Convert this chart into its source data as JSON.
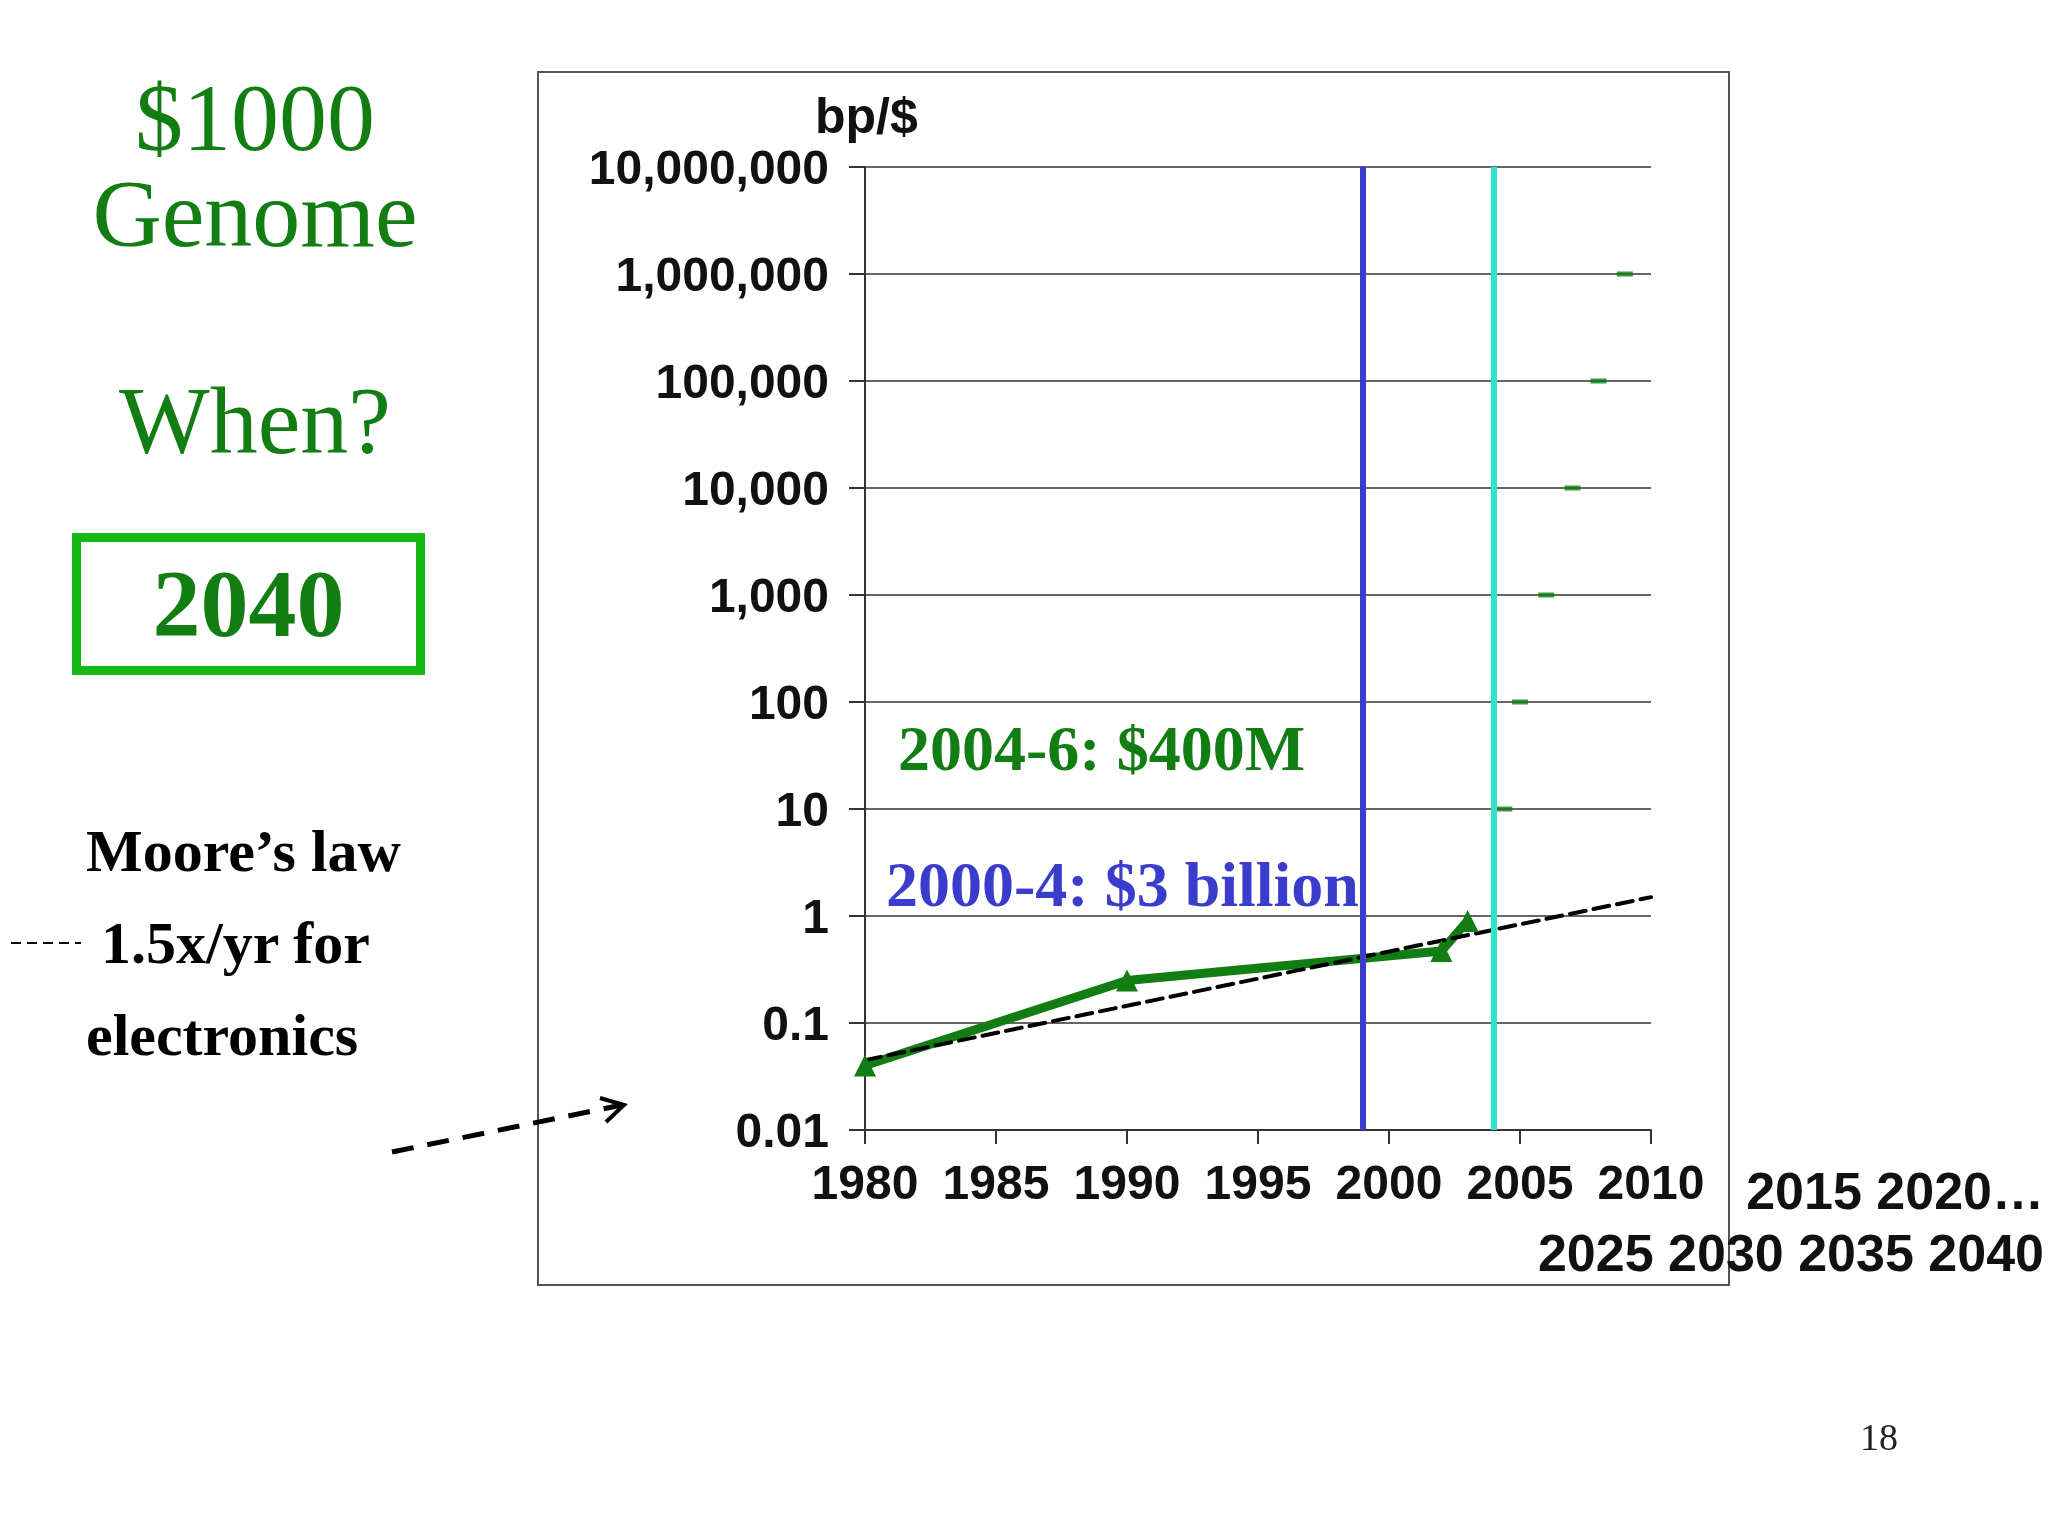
{
  "chart_data": {
    "type": "line",
    "title": "$1000 Genome",
    "ylabel": "bp/$",
    "annotations": [
      "When?",
      "2040",
      "2004-6: $400M",
      "2000-4: $3 billion",
      "2015 2020…\n2025 2030 2035 2040",
      "18"
    ],
    "series": [
      {
        "type": "line",
        "color": "#127d12",
        "x": [
          1980,
          1990,
          2002,
          2003
        ],
        "values": [
          0.04,
          0.25,
          0.47,
          0.9
        ],
        "marker": "triangle"
      },
      {
        "type": "scatter",
        "color": "#127d12",
        "x": [
          2004.4,
          2005,
          2006,
          2007,
          2008,
          2009
        ],
        "values": [
          10,
          100,
          1000,
          10000,
          100000,
          1000000
        ],
        "marker": "square"
      },
      {
        "type": "line",
        "name": "Moore’s law 1.5x/yr for electronics",
        "color": "#000000",
        "x": [
          1980,
          2010
        ],
        "values": [
          0.045,
          1.5
        ],
        "marker": "none",
        "line_style": "dashed"
      }
    ],
    "xlim": [
      1980,
      2010
    ],
    "xticks": [
      1980,
      1985,
      1990,
      1995,
      2000,
      2005,
      2010
    ],
    "ylim": [
      0.01,
      10000000
    ],
    "log": true,
    "yticks": [
      0.01,
      0.1,
      1,
      10,
      100,
      {
        "value": 1000,
        "label": "1,000"
      },
      {
        "value": 10000,
        "label": "10,000"
      },
      {
        "value": 100000,
        "label": "100,000"
      },
      {
        "value": 1000000,
        "label": "1,000,000"
      },
      {
        "value": 10000000,
        "label": "10,000,000"
      }
    ],
    "ref_lines": [
      {
        "axis": "x",
        "value": 1999,
        "color": "#3a3ccc"
      },
      {
        "axis": "x",
        "value": 2004,
        "color": "#2fe3cc"
      }
    ],
    "grid": "y",
    "legend": "left"
  }
}
